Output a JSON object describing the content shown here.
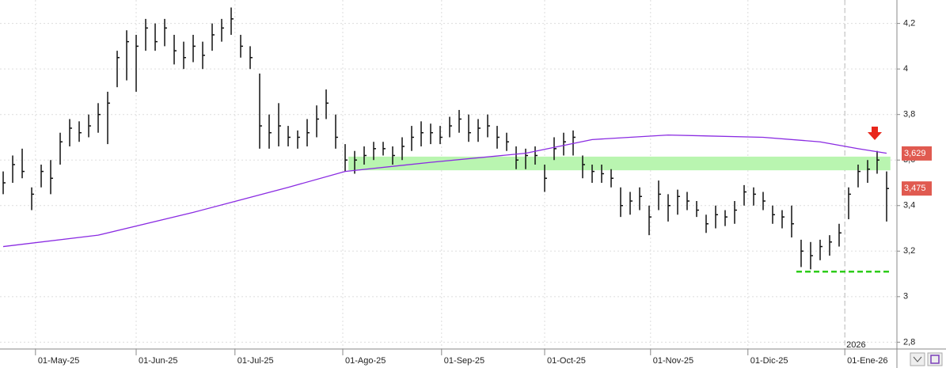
{
  "chart_data": {
    "type": "ohlc",
    "x": [
      0,
      2,
      4,
      6,
      8,
      10,
      12,
      14,
      16,
      18,
      20,
      22,
      24,
      26,
      28,
      30,
      32,
      34,
      36,
      38,
      40,
      42,
      44,
      46,
      48,
      50,
      52,
      54,
      56,
      58,
      60,
      62,
      64,
      66,
      68,
      70,
      72,
      74,
      76,
      78,
      80,
      82,
      84,
      86,
      88,
      90,
      92,
      94,
      96,
      98,
      100,
      102,
      104,
      106,
      108,
      110,
      112,
      114,
      116,
      118,
      120,
      122,
      124,
      126,
      128,
      130,
      132,
      134,
      136,
      138,
      140,
      142,
      144,
      146,
      148,
      150,
      152,
      154,
      156,
      158,
      160,
      162,
      164,
      166,
      168,
      170,
      172,
      174,
      176,
      178,
      180,
      182,
      184,
      186
    ],
    "high": [
      3.55,
      3.62,
      3.65,
      3.48,
      3.58,
      3.6,
      3.72,
      3.78,
      3.77,
      3.8,
      3.85,
      3.9,
      4.08,
      4.17,
      4.15,
      4.22,
      4.2,
      4.22,
      4.15,
      4.12,
      4.15,
      4.12,
      4.2,
      4.22,
      4.27,
      4.15,
      4.1,
      3.98,
      3.8,
      3.85,
      3.75,
      3.73,
      3.78,
      3.84,
      3.91,
      3.8,
      3.67,
      3.64,
      3.66,
      3.68,
      3.68,
      3.66,
      3.7,
      3.75,
      3.77,
      3.76,
      3.75,
      3.79,
      3.82,
      3.8,
      3.78,
      3.8,
      3.75,
      3.72,
      3.66,
      3.65,
      3.66,
      3.58,
      3.7,
      3.72,
      3.73,
      3.62,
      3.58,
      3.58,
      3.56,
      3.48,
      3.46,
      3.48,
      3.4,
      3.51,
      3.45,
      3.47,
      3.46,
      3.42,
      3.36,
      3.4,
      3.38,
      3.42,
      3.49,
      3.48,
      3.46,
      3.4,
      3.38,
      3.4,
      3.25,
      3.24,
      3.25,
      3.27,
      3.32,
      3.48,
      3.58,
      3.6,
      3.64,
      3.55
    ],
    "low": [
      3.45,
      3.5,
      3.52,
      3.38,
      3.48,
      3.45,
      3.58,
      3.66,
      3.68,
      3.7,
      3.72,
      3.67,
      3.92,
      3.95,
      3.9,
      4.08,
      4.08,
      4.1,
      4.02,
      4.0,
      4.03,
      4.0,
      4.08,
      4.12,
      4.15,
      4.05,
      4.0,
      3.65,
      3.65,
      3.66,
      3.66,
      3.65,
      3.66,
      3.7,
      3.78,
      3.65,
      3.55,
      3.54,
      3.58,
      3.6,
      3.62,
      3.58,
      3.6,
      3.64,
      3.66,
      3.67,
      3.67,
      3.7,
      3.72,
      3.68,
      3.68,
      3.7,
      3.65,
      3.64,
      3.56,
      3.56,
      3.58,
      3.46,
      3.6,
      3.62,
      3.62,
      3.52,
      3.5,
      3.5,
      3.48,
      3.35,
      3.36,
      3.38,
      3.27,
      3.38,
      3.33,
      3.36,
      3.38,
      3.35,
      3.28,
      3.3,
      3.31,
      3.32,
      3.4,
      3.4,
      3.38,
      3.32,
      3.3,
      3.26,
      3.13,
      3.12,
      3.16,
      3.18,
      3.22,
      3.34,
      3.48,
      3.5,
      3.54,
      3.33
    ],
    "close": [
      3.5,
      3.58,
      3.55,
      3.45,
      3.55,
      3.52,
      3.68,
      3.74,
      3.72,
      3.75,
      3.8,
      3.85,
      4.05,
      4.12,
      4.1,
      4.18,
      4.12,
      4.18,
      4.08,
      4.05,
      4.1,
      4.06,
      4.15,
      4.18,
      4.22,
      4.1,
      4.05,
      3.75,
      3.72,
      3.75,
      3.7,
      3.7,
      3.72,
      3.78,
      3.85,
      3.7,
      3.6,
      3.6,
      3.62,
      3.65,
      3.65,
      3.62,
      3.66,
      3.7,
      3.72,
      3.72,
      3.7,
      3.75,
      3.78,
      3.72,
      3.74,
      3.75,
      3.7,
      3.68,
      3.6,
      3.62,
      3.62,
      3.52,
      3.65,
      3.68,
      3.7,
      3.58,
      3.55,
      3.54,
      3.52,
      3.4,
      3.42,
      3.44,
      3.35,
      3.45,
      3.4,
      3.44,
      3.42,
      3.38,
      3.32,
      3.36,
      3.35,
      3.38,
      3.46,
      3.45,
      3.42,
      3.36,
      3.35,
      3.32,
      3.2,
      3.18,
      3.22,
      3.24,
      3.28,
      3.45,
      3.55,
      3.56,
      3.6,
      3.475
    ],
    "bar_color": "#111111",
    "moving_average": {
      "color": "#8a2be2",
      "x": [
        0,
        20,
        40,
        60,
        72,
        90,
        110,
        124,
        140,
        160,
        172,
        180,
        186
      ],
      "values": [
        3.22,
        3.27,
        3.37,
        3.48,
        3.55,
        3.59,
        3.63,
        3.69,
        3.71,
        3.7,
        3.68,
        3.65,
        3.63
      ]
    },
    "zone": {
      "color": "#b9f5b0",
      "low": 3.555,
      "high": 3.615,
      "x": [
        72.7,
        186.8
      ]
    },
    "support": {
      "color": "#2ecc1a",
      "value": 3.11,
      "x": [
        167,
        186.5
      ]
    },
    "price_labels": [
      {
        "value": 3.629,
        "label": "3,629",
        "color": "#e05a50"
      },
      {
        "value": 3.475,
        "label": "3,475",
        "color": "#e05a50"
      }
    ],
    "year_marker": {
      "x": 177.2,
      "label": "2026"
    },
    "xlim": [
      -0.67,
      188.17
    ],
    "xticks": [
      {
        "value": 6.8,
        "label": "01-May-25"
      },
      {
        "value": 28,
        "label": "01-Jun-25"
      },
      {
        "value": 48.8,
        "label": "01-Jul-25"
      },
      {
        "value": 71.5,
        "label": "01-Ago-25"
      },
      {
        "value": 92.3,
        "label": "01-Sep-25"
      },
      {
        "value": 114,
        "label": "01-Oct-25"
      },
      {
        "value": 136.3,
        "label": "01-Nov-25"
      },
      {
        "value": 156.8,
        "label": "01-Dic-25"
      },
      {
        "value": 177.2,
        "label": "01-Ene-26"
      }
    ],
    "ylim": [
      2.77,
      4.303
    ],
    "yticks": [
      {
        "value": 2.8,
        "label": "2,8"
      },
      3,
      {
        "value": 3.2,
        "label": "3,2"
      },
      {
        "value": 3.4,
        "label": "3,4"
      },
      {
        "value": 3.6,
        "label": "3,6"
      },
      {
        "value": 3.8,
        "label": "3,8"
      },
      4,
      {
        "value": 4.2,
        "label": "4,2"
      }
    ],
    "grid": true
  }
}
